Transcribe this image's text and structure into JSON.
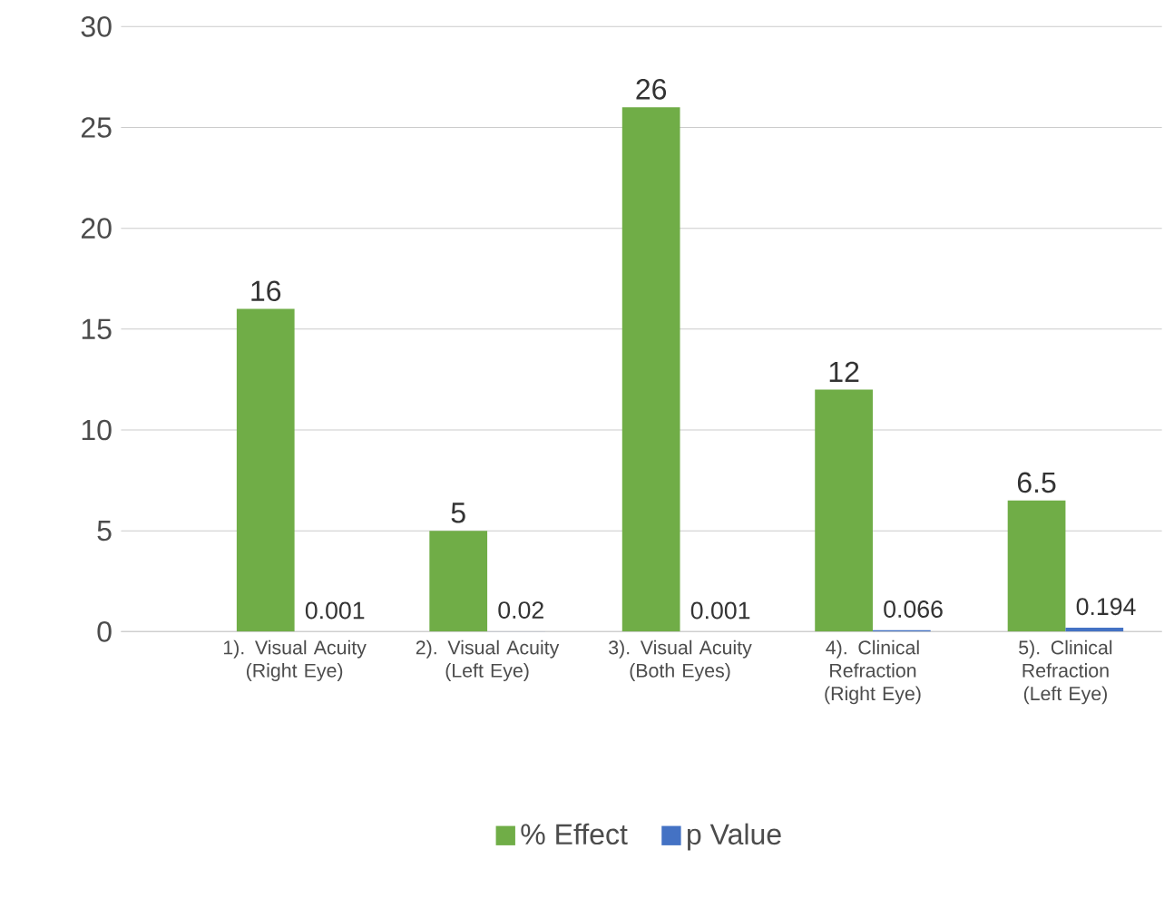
{
  "chart_data": {
    "type": "bar",
    "categories": [
      "1). Visual Acuity (Right Eye)",
      "2). Visual Acuity (Left Eye)",
      "3). Visual Acuity (Both Eyes)",
      "4). Clinical Refraction (Right Eye)",
      "5). Clinical Refraction (Left Eye)"
    ],
    "series": [
      {
        "name": "% Effect",
        "color": "#70ad47",
        "values": [
          16,
          5,
          26,
          12,
          6.5
        ]
      },
      {
        "name": "p Value",
        "color": "#4472c4",
        "values": [
          0.001,
          0.02,
          0.001,
          0.066,
          0.194
        ]
      }
    ],
    "ylim": [
      0,
      30
    ],
    "yticks": [
      0,
      5,
      10,
      15,
      20,
      25,
      30
    ],
    "grid": "y",
    "legend": "bottom",
    "data_labels": true
  }
}
